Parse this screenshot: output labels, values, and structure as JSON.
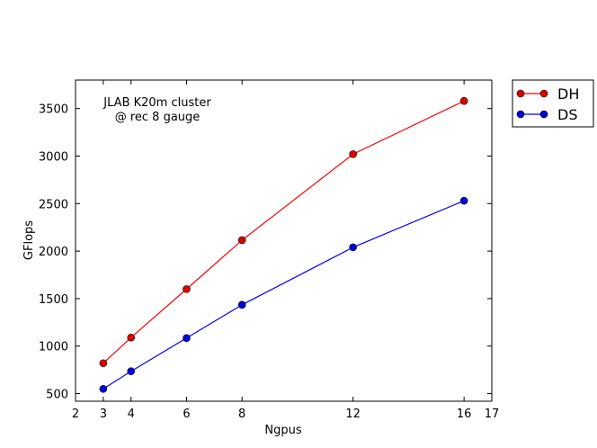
{
  "chart_data": {
    "type": "line",
    "title": "",
    "xlabel": "Ngpus",
    "ylabel": "GFlops",
    "xlim": [
      2,
      17
    ],
    "ylim": [
      420,
      3800
    ],
    "xticks": [
      2,
      3,
      4,
      6,
      8,
      12,
      16,
      17
    ],
    "yticks": [
      500,
      1000,
      1500,
      2000,
      2500,
      3000,
      3500
    ],
    "annotation": [
      "JLAB K20m cluster",
      "@ rec 8 gauge"
    ],
    "legend_position": "outside-top-right",
    "grid": false,
    "series": [
      {
        "name": "DH",
        "color": "#ff0000",
        "marker_color": "#dd0000",
        "x": [
          3,
          4,
          6,
          8,
          12,
          16
        ],
        "y": [
          820,
          1090,
          1600,
          2115,
          3020,
          3580
        ]
      },
      {
        "name": "DS",
        "color": "#0000ff",
        "marker_color": "#0000dd",
        "x": [
          3,
          4,
          6,
          8,
          12,
          16
        ],
        "y": [
          550,
          735,
          1085,
          1435,
          2040,
          2530
        ]
      }
    ]
  }
}
